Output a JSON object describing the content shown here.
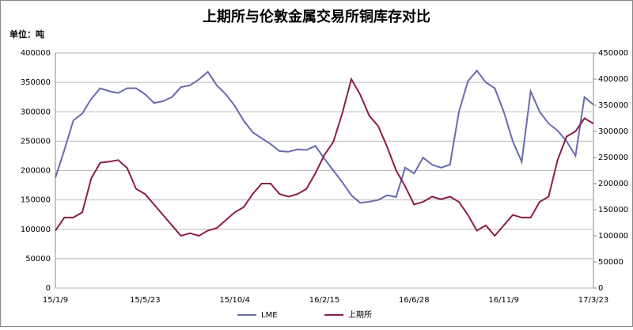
{
  "chart_data": {
    "type": "line",
    "title": "上期所与伦敦金属交易所铜库存对比",
    "unit_label": "单位：吨",
    "categories": [
      "15/1/9",
      null,
      null,
      null,
      null,
      null,
      null,
      null,
      null,
      null,
      "15/5/23",
      null,
      null,
      null,
      null,
      null,
      null,
      null,
      null,
      null,
      "15/10/4",
      null,
      null,
      null,
      null,
      null,
      null,
      null,
      null,
      null,
      "16/2/15",
      null,
      null,
      null,
      null,
      null,
      null,
      null,
      null,
      null,
      "16/6/28",
      null,
      null,
      null,
      null,
      null,
      null,
      null,
      null,
      null,
      "16/11/9",
      null,
      null,
      null,
      null,
      null,
      null,
      null,
      null,
      null,
      "17/3/23"
    ],
    "series": [
      {
        "name": "LME",
        "color": "#6a6aae",
        "values": [
          188000,
          235000,
          285000,
          297000,
          322000,
          340000,
          335000,
          332000,
          340000,
          340000,
          330000,
          315000,
          318000,
          325000,
          342000,
          345000,
          355000,
          368000,
          345000,
          330000,
          310000,
          285000,
          265000,
          255000,
          245000,
          233000,
          232000,
          236000,
          235000,
          242000,
          220000,
          200000,
          180000,
          158000,
          145000,
          147000,
          150000,
          158000,
          155000,
          205000,
          195000,
          222000,
          210000,
          205000,
          210000,
          300000,
          352000,
          370000,
          350000,
          340000,
          300000,
          250000,
          215000,
          335000,
          300000,
          280000,
          268000,
          250000,
          225000,
          325000,
          312000
        ]
      },
      {
        "name": "上期所",
        "color": "#8c1c4c",
        "axis": "y2",
        "values": [
          110000,
          135000,
          135000,
          145000,
          210000,
          240000,
          242000,
          245000,
          230000,
          190000,
          180000,
          160000,
          140000,
          120000,
          100000,
          105000,
          100000,
          110000,
          115000,
          130000,
          145000,
          155000,
          180000,
          200000,
          200000,
          180000,
          175000,
          180000,
          190000,
          220000,
          255000,
          280000,
          335000,
          400000,
          370000,
          330000,
          310000,
          270000,
          225000,
          195000,
          160000,
          165000,
          175000,
          170000,
          175000,
          165000,
          140000,
          110000,
          120000,
          100000,
          120000,
          140000,
          135000,
          135000,
          165000,
          175000,
          245000,
          290000,
          300000,
          325000,
          315000
        ]
      }
    ],
    "ylim": [
      0,
      400000
    ],
    "yticks": [
      0,
      50000,
      100000,
      150000,
      200000,
      250000,
      300000,
      350000,
      400000
    ],
    "y2lim": [
      0,
      450000
    ],
    "y2ticks": [
      0,
      50000,
      100000,
      150000,
      200000,
      250000,
      300000,
      350000,
      400000,
      450000
    ],
    "grid": true,
    "legend": "bottom"
  }
}
